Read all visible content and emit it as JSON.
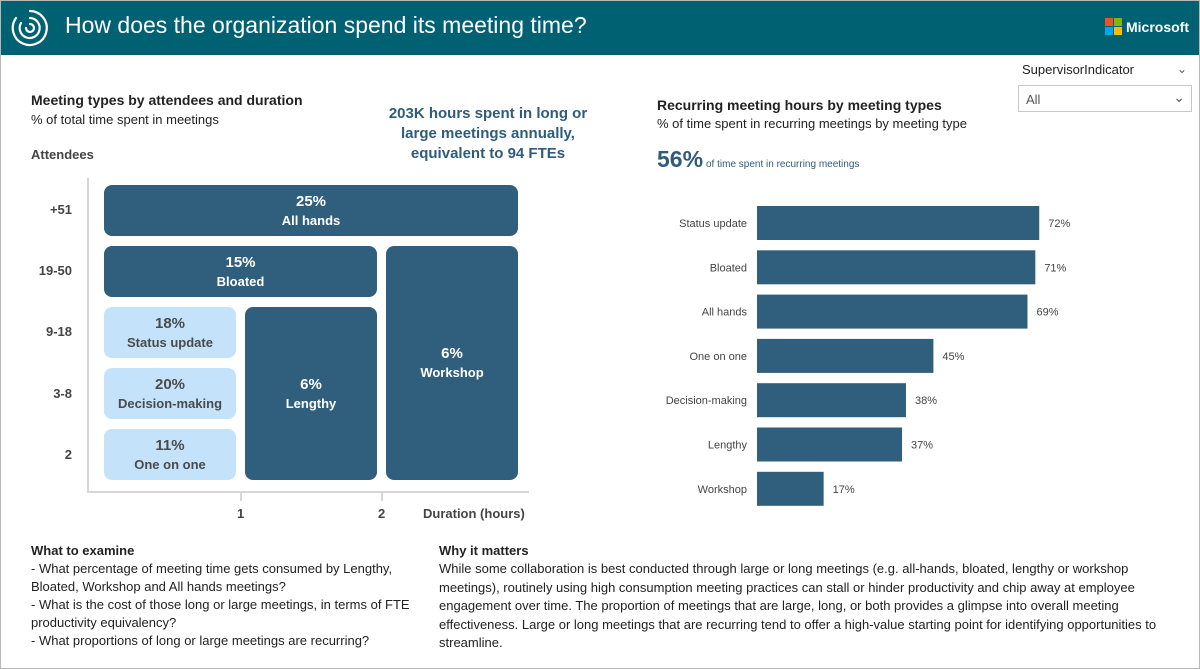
{
  "header": {
    "title": "How does the organization spend its meeting time?",
    "brand": "Microsoft",
    "logo_icon": "circular-arcs-logo",
    "brand_icon": "microsoft-four-squares-icon",
    "bg_color": "#006173"
  },
  "slicer": {
    "label": "SupervisorIndicator",
    "value": "All"
  },
  "left_chart": {
    "title": "Meeting types by attendees and duration",
    "subtitle": "% of total time spent in meetings",
    "callout": "203K hours spent in long or large meetings annually, equivalent to 94 FTEs",
    "y_title": "Attendees",
    "x_title": "Duration (hours)",
    "y_labels": [
      "+51",
      "19-50",
      "9-18",
      "3-8",
      "2"
    ],
    "x_labels": [
      "1",
      "2"
    ],
    "tiles": [
      {
        "pct": "25%",
        "name": "All hands"
      },
      {
        "pct": "15%",
        "name": "Bloated"
      },
      {
        "pct": "18%",
        "name": "Status update"
      },
      {
        "pct": "20%",
        "name": "Decision-making"
      },
      {
        "pct": "11%",
        "name": "One on one"
      },
      {
        "pct": "6%",
        "name": "Lengthy"
      },
      {
        "pct": "6%",
        "name": "Workshop"
      }
    ],
    "colors": {
      "dark": "#305f7d",
      "light": "#c4e3fb"
    }
  },
  "right_chart": {
    "title": "Recurring meeting hours by meeting types",
    "subtitle": "% of time spent in recurring meetings by meeting type",
    "kpi_value": "56%",
    "kpi_label": "of time spent in recurring meetings"
  },
  "chart_data": {
    "type": "bar",
    "orientation": "horizontal",
    "title": "Recurring meeting hours by meeting types",
    "subtitle": "% of time spent in recurring meetings by meeting type",
    "categories": [
      "Status update",
      "Bloated",
      "All hands",
      "One on one",
      "Decision-making",
      "Lengthy",
      "Workshop"
    ],
    "values": [
      72,
      71,
      69,
      45,
      38,
      37,
      17
    ],
    "value_labels": [
      "72%",
      "71%",
      "69%",
      "45%",
      "38%",
      "37%",
      "17%"
    ],
    "xlim": [
      0,
      100
    ],
    "color": "#305f7d",
    "grid": false
  },
  "what_to_examine": {
    "title": "What to examine",
    "lines": [
      "- What percentage of meeting time gets consumed by Lengthy, Bloated, Workshop and All hands meetings?",
      "- What is the cost of those long or large meetings, in terms of FTE productivity equivalency?",
      "- What proportions of long or large meetings are recurring?"
    ]
  },
  "why_it_matters": {
    "title": "Why it matters",
    "body": "While some collaboration is best conducted through large or long meetings (e.g. all-hands, bloated, lengthy or workshop meetings), routinely using high consumption meeting practices can stall or hinder productivity and chip away at employee engagement over time. The proportion of meetings that are large, long, or both provides a glimpse into overall meeting effectiveness. Large or long meetings that are recurring tend to offer a high-value starting point for identifying opportunities to streamline."
  }
}
